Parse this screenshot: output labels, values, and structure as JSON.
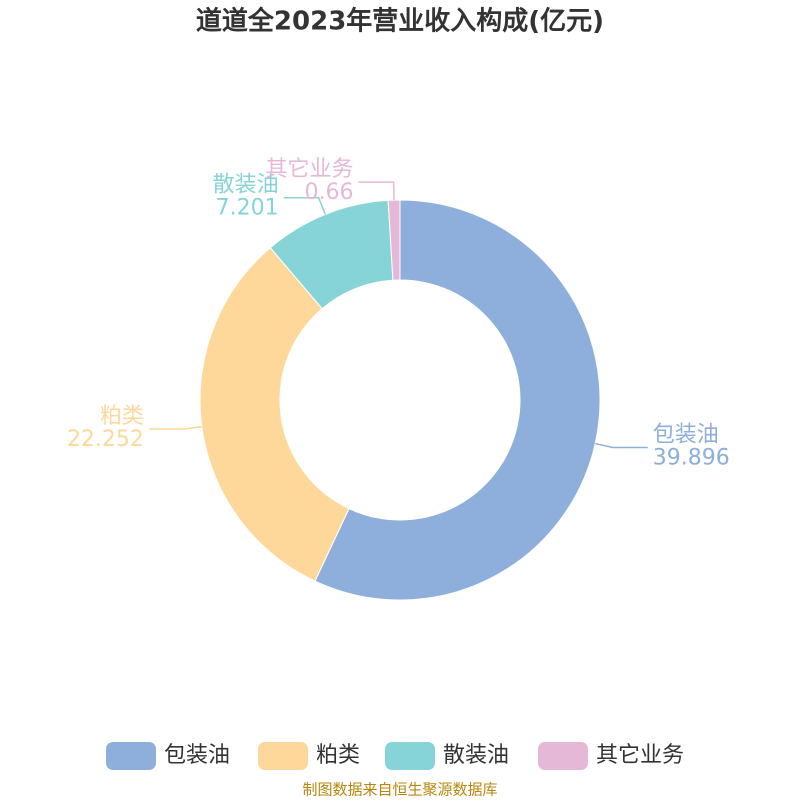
{
  "chart_data": {
    "type": "pie",
    "title": "道道全2023年营业收入构成(亿元)",
    "categories": [
      "包装油",
      "粕类",
      "散装油",
      "其它业务"
    ],
    "values": [
      39.896,
      22.252,
      7.201,
      0.66
    ],
    "colors": [
      "#8eaedb",
      "#fed89b",
      "#86d4d7",
      "#e6b8d8"
    ],
    "source": "制图数据来自恒生聚源数据库"
  }
}
